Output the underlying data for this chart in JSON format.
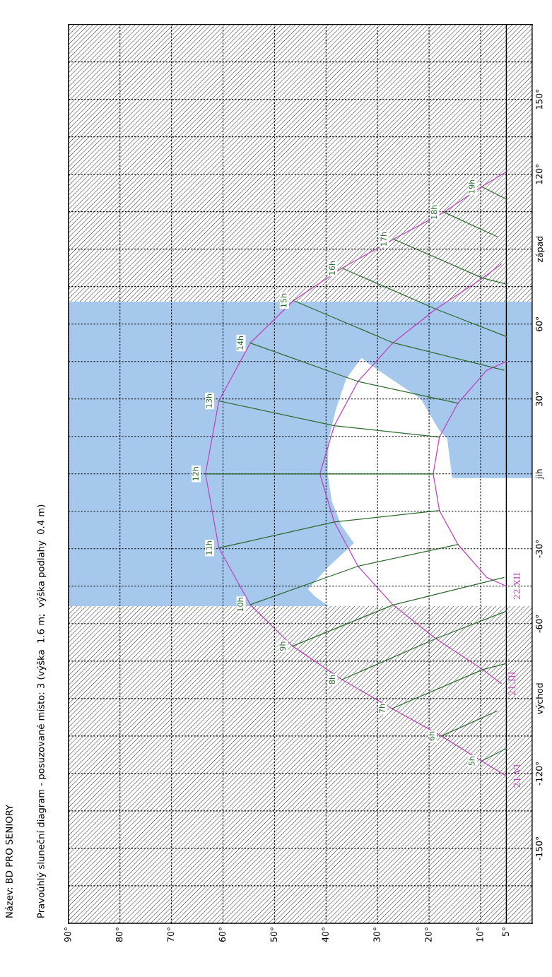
{
  "chart_data": {
    "type": "line",
    "title": "Název: BD PRO SENIORY",
    "subtitle": "Pravoúhlý sluneční diagram - posuzované místo: 3 (výška  1.6 m;  výška podlahy  0.4 m)",
    "xlim": [
      90,
      0
    ],
    "xticks": [
      {
        "value": 90,
        "label": "90°"
      },
      {
        "value": 80,
        "label": "80°"
      },
      {
        "value": 70,
        "label": "70°"
      },
      {
        "value": 60,
        "label": "60°"
      },
      {
        "value": 50,
        "label": "50°"
      },
      {
        "value": 40,
        "label": "40°"
      },
      {
        "value": 30,
        "label": "30°"
      },
      {
        "value": 20,
        "label": "20°"
      },
      {
        "value": 10,
        "label": "10°"
      },
      {
        "value": 5,
        "label": "5°"
      }
    ],
    "ylim": [
      -180,
      180
    ],
    "yticks": [
      {
        "value": -165,
        "label": null
      },
      {
        "value": -150,
        "label": "-150°"
      },
      {
        "value": -135,
        "label": null
      },
      {
        "value": -120,
        "label": "-120°"
      },
      {
        "value": -105,
        "label": null
      },
      {
        "value": -90,
        "label": "východ"
      },
      {
        "value": -75,
        "label": null
      },
      {
        "value": -60,
        "label": "-60°"
      },
      {
        "value": -45,
        "label": null
      },
      {
        "value": -30,
        "label": "-30°"
      },
      {
        "value": -15,
        "label": null
      },
      {
        "value": 0,
        "label": "jih"
      },
      {
        "value": 15,
        "label": null
      },
      {
        "value": 30,
        "label": "30°"
      },
      {
        "value": 45,
        "label": null
      },
      {
        "value": 60,
        "label": "60°"
      },
      {
        "value": 75,
        "label": null
      },
      {
        "value": 90,
        "label": "západ"
      },
      {
        "value": 105,
        "label": null
      },
      {
        "value": 120,
        "label": "120°"
      },
      {
        "value": 135,
        "label": null
      },
      {
        "value": 150,
        "label": "150°"
      },
      {
        "value": 165,
        "label": null
      }
    ],
    "grid": true,
    "line_style": "solid",
    "bands": [
      {
        "axis": "y",
        "from": -180,
        "to": -53,
        "color": "#ffffff"
      },
      {
        "axis": "y",
        "from": 69,
        "to": 180,
        "color": "#ffffff"
      },
      {
        "axis": "y",
        "from": -53,
        "to": 69,
        "color": "#a6c8ec"
      }
    ],
    "ref_lines": [
      {
        "axis": "x",
        "value": 5,
        "color": "#000000"
      }
    ],
    "series": [
      {
        "type": "area",
        "color": "#ffffff",
        "x": [
          33.1,
          32.0,
          21.6,
          18.0,
          16.5,
          15.5,
          0,
          0,
          39.5,
          42.2,
          43.5,
          39.5,
          34.6,
          37.1,
          38.9,
          39.7,
          39.5,
          38.1,
          36.1
        ],
        "values": [
          46.5,
          44.5,
          30.0,
          17.3,
          14.2,
          -1.7,
          -1.7,
          -53,
          -53,
          -49,
          -46.2,
          -37.1,
          -27.8,
          -20.4,
          -10.8,
          0.3,
          13.6,
          25.8,
          38.0
        ]
      },
      {
        "name": "21.VI",
        "color": "#c040c0",
        "x": [
          5,
          9.8,
          17.6,
          27.2,
          36.9,
          46.5,
          54.7,
          60.8,
          63.4,
          60.8,
          54.7,
          46.3,
          36.9,
          26.9,
          17.1,
          9.8,
          5
        ],
        "values": [
          -121,
          -115,
          -105,
          -94,
          -82.4,
          -69,
          -52.4,
          -29.7,
          0,
          29.2,
          52.4,
          69.4,
          82.4,
          94,
          104.8,
          115,
          121
        ]
      },
      {
        "name": "21.III",
        "color": "#c040c0",
        "x": [
          6,
          9.6,
          18.7,
          27,
          33.8,
          38.4,
          41.2,
          38.4,
          33.8,
          27,
          18.7,
          9.6,
          6
        ],
        "values": [
          -84,
          -78.4,
          -66,
          -52.5,
          -37,
          -19.3,
          0,
          19.3,
          37,
          52.5,
          66,
          78.4,
          84
        ]
      },
      {
        "name": "22.XII",
        "color": "#c040c0",
        "x": [
          5,
          8.8,
          14.4,
          18,
          19.2,
          18,
          14.4,
          8.8,
          5
        ],
        "values": [
          -45,
          -41.5,
          -28.3,
          -14.7,
          0,
          14.7,
          28.3,
          41.5,
          45
        ]
      },
      {
        "name": "5h",
        "color": "#2e6b2e",
        "x": [
          9.8,
          5
        ],
        "values": [
          -115,
          -110
        ]
      },
      {
        "name": "6h",
        "color": "#2e6b2e",
        "x": [
          17.6,
          6.8
        ],
        "values": [
          -105,
          -95
        ]
      },
      {
        "name": "7h",
        "color": "#2e6b2e",
        "x": [
          27.2,
          9.6,
          5
        ],
        "values": [
          -94,
          -78.4,
          -76
        ]
      },
      {
        "name": "8h",
        "color": "#2e6b2e",
        "x": [
          36.9,
          18.7,
          5
        ],
        "values": [
          -82.4,
          -66,
          -55
        ]
      },
      {
        "name": "9h",
        "color": "#2e6b2e",
        "x": [
          46.5,
          27,
          5.5
        ],
        "values": [
          -69,
          -52.5,
          -41.5
        ]
      },
      {
        "name": "10h",
        "color": "#2e6b2e",
        "x": [
          54.7,
          33.8,
          14.4
        ],
        "values": [
          -52.4,
          -37,
          -28.3
        ]
      },
      {
        "name": "11h",
        "color": "#2e6b2e",
        "x": [
          60.8,
          38.4,
          18
        ],
        "values": [
          -29.7,
          -19.3,
          -14.7
        ]
      },
      {
        "name": "12h",
        "color": "#2e6b2e",
        "x": [
          63.4,
          41.2,
          19.2
        ],
        "values": [
          0,
          0,
          0
        ]
      },
      {
        "name": "13h",
        "color": "#2e6b2e",
        "x": [
          60.8,
          38.4,
          18
        ],
        "values": [
          29.2,
          19.3,
          14.7
        ]
      },
      {
        "name": "14h",
        "color": "#2e6b2e",
        "x": [
          54.7,
          33.8,
          14.4
        ],
        "values": [
          52.4,
          37,
          28.3
        ]
      },
      {
        "name": "15h",
        "color": "#2e6b2e",
        "x": [
          46.3,
          27,
          5.5
        ],
        "values": [
          69.4,
          52.5,
          41.5
        ]
      },
      {
        "name": "16h",
        "color": "#2e6b2e",
        "x": [
          36.9,
          18.7,
          5
        ],
        "values": [
          82.4,
          66,
          55
        ]
      },
      {
        "name": "17h",
        "color": "#2e6b2e",
        "x": [
          26.9,
          9.6,
          5
        ],
        "values": [
          94,
          78.4,
          76
        ]
      },
      {
        "name": "18h",
        "color": "#2e6b2e",
        "x": [
          17.1,
          6.8
        ],
        "values": [
          104.8,
          95
        ]
      },
      {
        "name": "19h",
        "color": "#2e6b2e",
        "x": [
          9.8,
          5
        ],
        "values": [
          115,
          110
        ]
      }
    ]
  }
}
